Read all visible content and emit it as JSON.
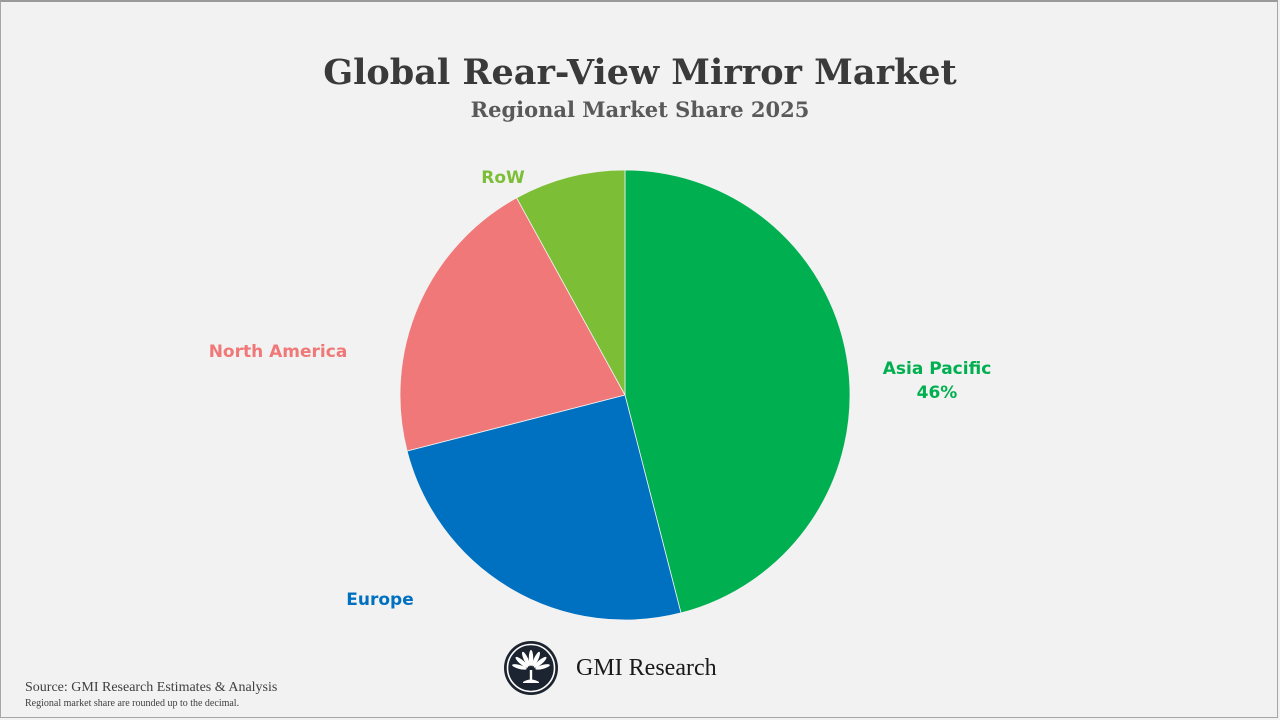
{
  "header": {
    "title": "Global Rear-View Mirror Market",
    "subtitle": "Regional Market Share 2025"
  },
  "labels": {
    "asia_pacific": {
      "name": "Asia Pacific",
      "value": "46%",
      "color": "#00b050"
    },
    "europe": {
      "name": "Europe",
      "color": "#0070c0"
    },
    "north_america": {
      "name": "North America",
      "color": "#f07878"
    },
    "row": {
      "name": "RoW",
      "color": "#7cbf36"
    }
  },
  "footer": {
    "brand": "GMI Research",
    "source": "Source: GMI Research Estimates & Analysis",
    "note": "Regional market share are rounded up to the decimal."
  },
  "chart_data": {
    "type": "pie",
    "title": "Global Rear-View Mirror Market",
    "subtitle": "Regional Market Share 2025",
    "categories": [
      "Asia Pacific",
      "Europe",
      "North America",
      "RoW"
    ],
    "values": [
      46,
      25,
      21,
      8
    ],
    "colors": [
      "#00b050",
      "#0070c0",
      "#f07878",
      "#7cbf36"
    ],
    "unit": "%",
    "data_labels_shown": {
      "Asia Pacific": "46%"
    },
    "start_angle_deg": 0,
    "direction": "clockwise",
    "legend": "none (category labels placed beside slices)"
  }
}
